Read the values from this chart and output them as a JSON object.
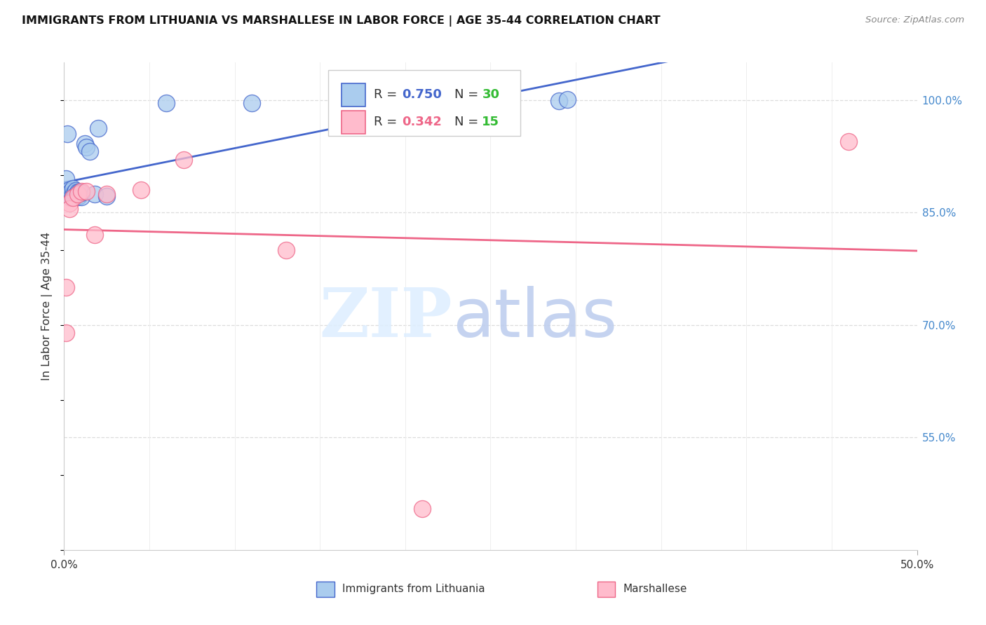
{
  "title": "IMMIGRANTS FROM LITHUANIA VS MARSHALLESE IN LABOR FORCE | AGE 35-44 CORRELATION CHART",
  "source": "Source: ZipAtlas.com",
  "xlabel_label": "Immigrants from Lithuania",
  "ylabel_label": "In Labor Force | Age 35-44",
  "x_min": 0.0,
  "x_max": 0.5,
  "y_min": 0.4,
  "y_max": 1.05,
  "y_tick_vals_right": [
    1.0,
    0.85,
    0.7,
    0.55
  ],
  "y_tick_labels_right": [
    "100.0%",
    "85.0%",
    "70.0%",
    "55.0%"
  ],
  "blue_R": "0.750",
  "blue_N": "30",
  "pink_R": "0.342",
  "pink_N": "15",
  "blue_scatter_x": [
    0.001,
    0.002,
    0.003,
    0.003,
    0.004,
    0.004,
    0.005,
    0.005,
    0.005,
    0.006,
    0.006,
    0.007,
    0.007,
    0.008,
    0.008,
    0.009,
    0.009,
    0.01,
    0.01,
    0.012,
    0.013,
    0.015,
    0.018,
    0.02,
    0.025,
    0.06,
    0.11,
    0.185,
    0.29,
    0.295
  ],
  "blue_scatter_y": [
    0.895,
    0.955,
    0.875,
    0.88,
    0.87,
    0.878,
    0.872,
    0.876,
    0.882,
    0.871,
    0.876,
    0.879,
    0.874,
    0.871,
    0.877,
    0.873,
    0.877,
    0.871,
    0.876,
    0.942,
    0.937,
    0.932,
    0.875,
    0.962,
    0.872,
    0.996,
    0.996,
    0.991,
    0.999,
    1.001
  ],
  "pink_scatter_x": [
    0.001,
    0.001,
    0.003,
    0.003,
    0.005,
    0.008,
    0.01,
    0.013,
    0.018,
    0.025,
    0.045,
    0.07,
    0.13,
    0.21,
    0.46
  ],
  "pink_scatter_y": [
    0.75,
    0.69,
    0.862,
    0.855,
    0.87,
    0.875,
    0.878,
    0.878,
    0.82,
    0.875,
    0.88,
    0.92,
    0.8,
    0.455,
    0.945
  ],
  "blue_line_color": "#4466CC",
  "pink_line_color": "#EE6688",
  "blue_dot_facecolor": "#AACCEE",
  "pink_dot_facecolor": "#FFBBCC",
  "grid_color": "#DDDDDD",
  "minor_xticks": [
    0.05,
    0.1,
    0.15,
    0.2,
    0.25,
    0.3,
    0.35,
    0.4,
    0.45
  ],
  "legend_blue_label": "Immigrants from Lithuania",
  "legend_pink_label": "Marshallese"
}
